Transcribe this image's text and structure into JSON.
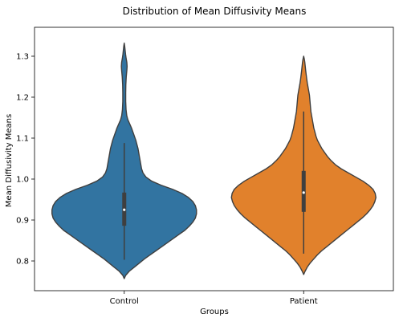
{
  "chart_data": {
    "type": "violin",
    "title": "Distribution of Mean Diffusivity Means",
    "xlabel": "Groups",
    "ylabel": "Mean Diffusivity Means",
    "ylim": [
      0.73,
      1.35
    ],
    "yticks": [
      0.8,
      0.9,
      1.0,
      1.1,
      1.2,
      1.3
    ],
    "ytick_labels": [
      "0.8",
      "0.9",
      "1.0",
      "1.1",
      "1.2",
      "1.3"
    ],
    "categories": [
      "Control",
      "Patient"
    ],
    "grid": false,
    "series": [
      {
        "category": "Control",
        "color": "#3274a1",
        "min": 0.803,
        "q1": 0.886,
        "median": 0.925,
        "q3": 0.967,
        "max": 1.088,
        "density": [
          [
            0.757,
            0.0
          ],
          [
            0.765,
            0.02
          ],
          [
            0.775,
            0.07
          ],
          [
            0.785,
            0.14
          ],
          [
            0.795,
            0.21
          ],
          [
            0.805,
            0.28
          ],
          [
            0.815,
            0.36
          ],
          [
            0.825,
            0.44
          ],
          [
            0.835,
            0.52
          ],
          [
            0.845,
            0.6
          ],
          [
            0.855,
            0.68
          ],
          [
            0.865,
            0.76
          ],
          [
            0.875,
            0.84
          ],
          [
            0.885,
            0.9
          ],
          [
            0.895,
            0.95
          ],
          [
            0.905,
            0.985
          ],
          [
            0.915,
            1.0
          ],
          [
            0.925,
            1.0
          ],
          [
            0.935,
            0.985
          ],
          [
            0.945,
            0.95
          ],
          [
            0.955,
            0.89
          ],
          [
            0.965,
            0.8
          ],
          [
            0.975,
            0.67
          ],
          [
            0.985,
            0.51
          ],
          [
            0.995,
            0.38
          ],
          [
            1.005,
            0.3
          ],
          [
            1.015,
            0.26
          ],
          [
            1.025,
            0.24
          ],
          [
            1.035,
            0.23
          ],
          [
            1.045,
            0.22
          ],
          [
            1.055,
            0.21
          ],
          [
            1.065,
            0.2
          ],
          [
            1.075,
            0.19
          ],
          [
            1.085,
            0.175
          ],
          [
            1.095,
            0.16
          ],
          [
            1.105,
            0.14
          ],
          [
            1.115,
            0.12
          ],
          [
            1.125,
            0.1
          ],
          [
            1.135,
            0.075
          ],
          [
            1.145,
            0.05
          ],
          [
            1.155,
            0.035
          ],
          [
            1.17,
            0.025
          ],
          [
            1.19,
            0.02
          ],
          [
            1.21,
            0.02
          ],
          [
            1.23,
            0.022
          ],
          [
            1.25,
            0.028
          ],
          [
            1.265,
            0.036
          ],
          [
            1.275,
            0.04
          ],
          [
            1.285,
            0.036
          ],
          [
            1.295,
            0.026
          ],
          [
            1.305,
            0.018
          ],
          [
            1.315,
            0.012
          ],
          [
            1.325,
            0.006
          ],
          [
            1.332,
            0.0
          ]
        ]
      },
      {
        "category": "Patient",
        "color": "#e1812c",
        "min": 0.818,
        "q1": 0.92,
        "median": 0.967,
        "q3": 1.02,
        "max": 1.165,
        "density": [
          [
            0.767,
            0.0
          ],
          [
            0.775,
            0.02
          ],
          [
            0.785,
            0.05
          ],
          [
            0.795,
            0.09
          ],
          [
            0.805,
            0.14
          ],
          [
            0.815,
            0.19
          ],
          [
            0.825,
            0.25
          ],
          [
            0.835,
            0.32
          ],
          [
            0.845,
            0.39
          ],
          [
            0.855,
            0.46
          ],
          [
            0.865,
            0.53
          ],
          [
            0.875,
            0.6
          ],
          [
            0.885,
            0.67
          ],
          [
            0.895,
            0.74
          ],
          [
            0.905,
            0.81
          ],
          [
            0.915,
            0.87
          ],
          [
            0.925,
            0.92
          ],
          [
            0.935,
            0.96
          ],
          [
            0.945,
            0.985
          ],
          [
            0.955,
            1.0
          ],
          [
            0.965,
            0.99
          ],
          [
            0.975,
            0.96
          ],
          [
            0.985,
            0.9
          ],
          [
            0.995,
            0.82
          ],
          [
            1.005,
            0.72
          ],
          [
            1.015,
            0.62
          ],
          [
            1.025,
            0.52
          ],
          [
            1.035,
            0.44
          ],
          [
            1.045,
            0.38
          ],
          [
            1.055,
            0.33
          ],
          [
            1.065,
            0.29
          ],
          [
            1.075,
            0.25
          ],
          [
            1.085,
            0.22
          ],
          [
            1.095,
            0.19
          ],
          [
            1.105,
            0.17
          ],
          [
            1.115,
            0.155
          ],
          [
            1.125,
            0.14
          ],
          [
            1.135,
            0.13
          ],
          [
            1.145,
            0.12
          ],
          [
            1.155,
            0.11
          ],
          [
            1.165,
            0.1
          ],
          [
            1.175,
            0.095
          ],
          [
            1.185,
            0.09
          ],
          [
            1.195,
            0.085
          ],
          [
            1.205,
            0.08
          ],
          [
            1.215,
            0.07
          ],
          [
            1.225,
            0.06
          ],
          [
            1.235,
            0.05
          ],
          [
            1.245,
            0.042
          ],
          [
            1.255,
            0.035
          ],
          [
            1.265,
            0.028
          ],
          [
            1.275,
            0.022
          ],
          [
            1.285,
            0.016
          ],
          [
            1.292,
            0.01
          ],
          [
            1.3,
            0.0
          ]
        ]
      }
    ]
  }
}
